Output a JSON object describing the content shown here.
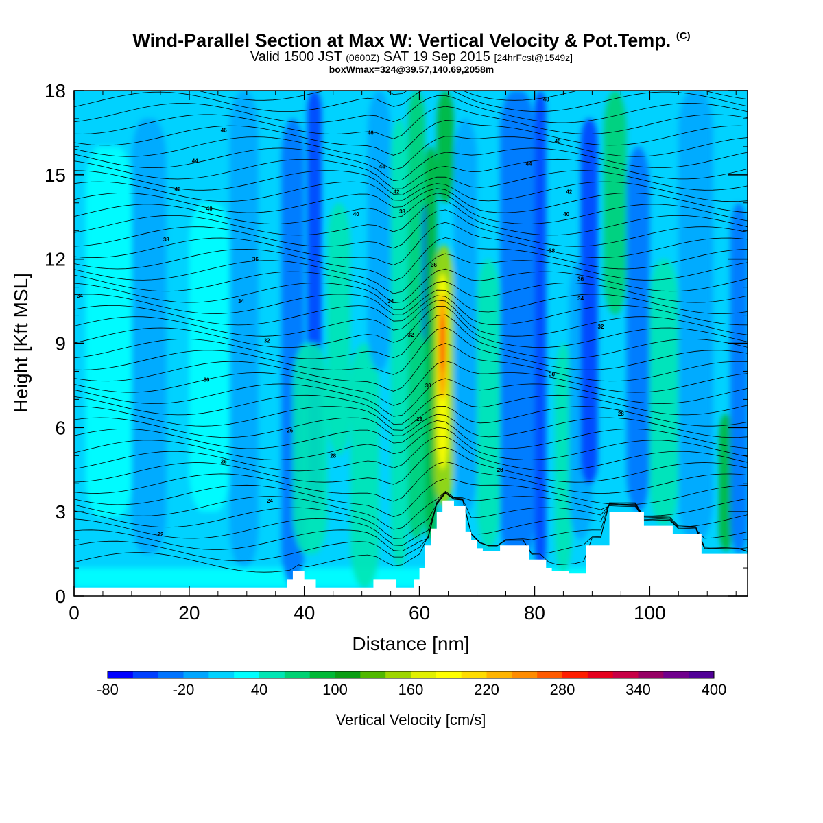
{
  "title": {
    "main": "Wind-Parallel Section at Max W: Vertical Velocity & Pot.Temp.",
    "copyright": "(C)",
    "valid_prefix": "Valid 1500 JST",
    "valid_utc": "(0600Z)",
    "valid_date": "SAT 19 Sep 2015",
    "forecast": "[24hrFcst@1549z]",
    "boxline": "boxWmax=324@39.57,140.69,2058m"
  },
  "chart_data": {
    "type": "heatmap",
    "xlabel": "Distance [nm]",
    "ylabel": "Height [Kft MSL]",
    "xlim": [
      0,
      117
    ],
    "ylim": [
      0,
      18
    ],
    "xticks": [
      "0",
      "20",
      "40",
      "60",
      "80",
      "100"
    ],
    "yticks": [
      "0",
      "3",
      "6",
      "9",
      "12",
      "15",
      "18"
    ],
    "colorbar": {
      "label": "Vertical Velocity [cm/s]",
      "min": -80,
      "max": 400,
      "step": 20,
      "tick_labels": [
        "-80",
        "-20",
        "40",
        "100",
        "160",
        "220",
        "280",
        "340",
        "400"
      ],
      "colors": [
        "#0000ff",
        "#0040ff",
        "#0074ff",
        "#00a6ff",
        "#00d2ff",
        "#00ffff",
        "#00e6b4",
        "#00d273",
        "#00b836",
        "#0a9e14",
        "#51b800",
        "#9ed600",
        "#e1f000",
        "#ffff00",
        "#ffdc00",
        "#ffb400",
        "#ff8c00",
        "#ff5a00",
        "#ff1e00",
        "#e6001e",
        "#c80046",
        "#960064",
        "#70008c",
        "#500096"
      ]
    },
    "updraft_peak_cm_s": 324,
    "updraft_peak_distance_nm": 63.5,
    "updraft_peak_height_kft": 8.5,
    "terrain": {
      "distance_nm": [
        0,
        35.5,
        37,
        38,
        40,
        42,
        43,
        46,
        51,
        52,
        56,
        57,
        59,
        60,
        61,
        62,
        63,
        64,
        66,
        68,
        69,
        70,
        71,
        74,
        79,
        82,
        83,
        86,
        89,
        93,
        97,
        99,
        101,
        104,
        107,
        109,
        112,
        114,
        116,
        117
      ],
      "height_kft": [
        0.3,
        0.3,
        0.6,
        0.9,
        0.6,
        0.3,
        0.3,
        0.3,
        0.3,
        0.6,
        0.3,
        0.3,
        0.6,
        1.0,
        1.8,
        2.4,
        3.0,
        3.4,
        3.2,
        2.3,
        2.0,
        1.7,
        1.6,
        1.8,
        1.3,
        1.0,
        0.9,
        0.8,
        1.8,
        3.0,
        3.0,
        2.5,
        2.5,
        2.2,
        2.2,
        1.5,
        1.5,
        1.5,
        1.5,
        1.4
      ]
    },
    "isentrope_labels": [
      {
        "value": "22",
        "x": 15,
        "y": 2.2
      },
      {
        "value": "24",
        "x": 34,
        "y": 3.4
      },
      {
        "value": "26",
        "x": 26,
        "y": 4.8
      },
      {
        "value": "26",
        "x": 37.5,
        "y": 5.9
      },
      {
        "value": "28",
        "x": 45,
        "y": 5.0
      },
      {
        "value": "28",
        "x": 74,
        "y": 4.5
      },
      {
        "value": "28",
        "x": 60,
        "y": 6.3
      },
      {
        "value": "28",
        "x": 95,
        "y": 6.5
      },
      {
        "value": "30",
        "x": 61.5,
        "y": 7.5
      },
      {
        "value": "30",
        "x": 83,
        "y": 7.9
      },
      {
        "value": "30",
        "x": 23,
        "y": 7.7
      },
      {
        "value": "32",
        "x": 33.5,
        "y": 9.1
      },
      {
        "value": "32",
        "x": 58.5,
        "y": 9.3
      },
      {
        "value": "32",
        "x": 91.5,
        "y": 9.6
      },
      {
        "value": "34",
        "x": 1,
        "y": 10.7
      },
      {
        "value": "34",
        "x": 29,
        "y": 10.5
      },
      {
        "value": "34",
        "x": 55,
        "y": 10.5
      },
      {
        "value": "34",
        "x": 88,
        "y": 10.6
      },
      {
        "value": "36",
        "x": 31.5,
        "y": 12.0
      },
      {
        "value": "36",
        "x": 62.5,
        "y": 11.8
      },
      {
        "value": "36",
        "x": 88,
        "y": 11.3
      },
      {
        "value": "38",
        "x": 16,
        "y": 12.7
      },
      {
        "value": "38",
        "x": 57,
        "y": 13.7
      },
      {
        "value": "38",
        "x": 83,
        "y": 12.3
      },
      {
        "value": "40",
        "x": 23.5,
        "y": 13.8
      },
      {
        "value": "40",
        "x": 49,
        "y": 13.6
      },
      {
        "value": "40",
        "x": 85.5,
        "y": 13.6
      },
      {
        "value": "42",
        "x": 18,
        "y": 14.5
      },
      {
        "value": "42",
        "x": 56,
        "y": 14.4
      },
      {
        "value": "42",
        "x": 86,
        "y": 14.4
      },
      {
        "value": "44",
        "x": 21,
        "y": 15.5
      },
      {
        "value": "44",
        "x": 53.5,
        "y": 15.3
      },
      {
        "value": "44",
        "x": 79,
        "y": 15.4
      },
      {
        "value": "46",
        "x": 26,
        "y": 16.6
      },
      {
        "value": "46",
        "x": 51.5,
        "y": 16.5
      },
      {
        "value": "46",
        "x": 84,
        "y": 16.2
      },
      {
        "value": "48",
        "x": 82,
        "y": 17.7
      }
    ]
  }
}
